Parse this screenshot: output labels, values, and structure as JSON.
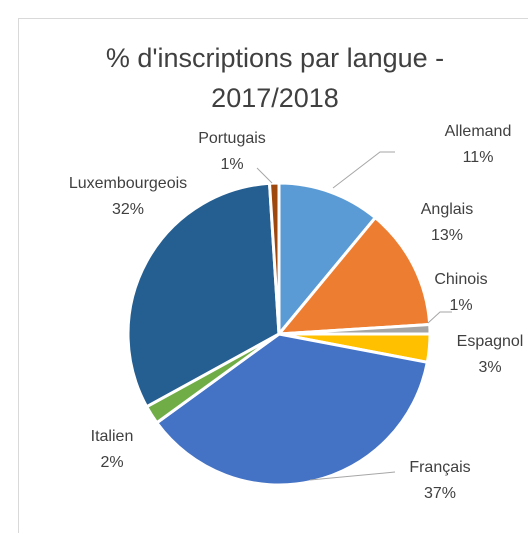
{
  "chart_data": {
    "type": "pie",
    "title": "% d'inscriptions par langue - 2017/2018",
    "categories": [
      "Allemand",
      "Anglais",
      "Chinois",
      "Espagnol",
      "Français",
      "Italien",
      "Luxembourgeois",
      "Portugais"
    ],
    "values": [
      11,
      13,
      1,
      3,
      37,
      2,
      32,
      1
    ],
    "value_labels": [
      "11%",
      "13%",
      "1%",
      "3%",
      "37%",
      "2%",
      "32%",
      "1%"
    ],
    "colors": [
      "#5b9bd5",
      "#ed7d31",
      "#a5a5a5",
      "#ffc000",
      "#4472c4",
      "#70ad47",
      "#255e91",
      "#9e480e"
    ]
  }
}
